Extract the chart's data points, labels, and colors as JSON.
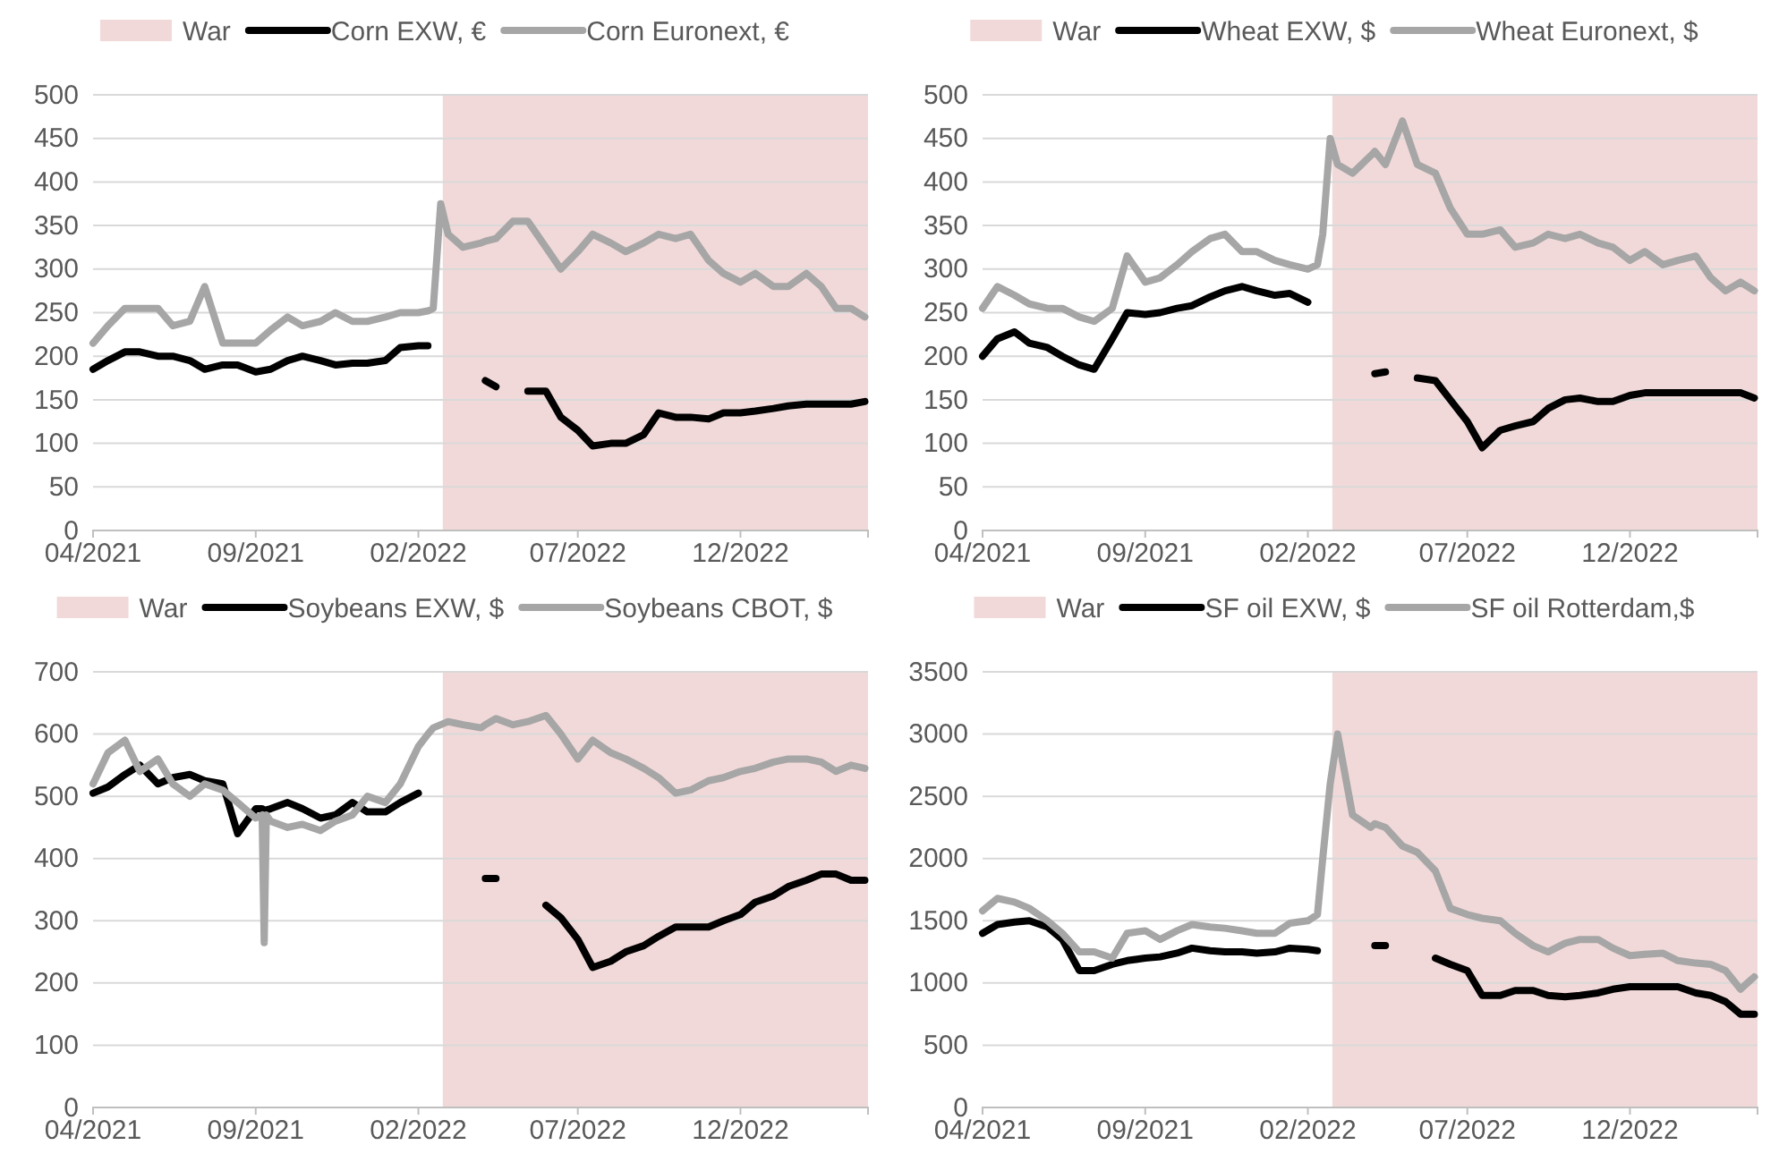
{
  "chart_data": [
    {
      "type": "line",
      "x": [
        "2021-04-01",
        "2021-04-15",
        "2021-05-01",
        "2021-05-15",
        "2021-06-01",
        "2021-06-15",
        "2021-07-01",
        "2021-07-15",
        "2021-08-01",
        "2021-08-15",
        "2021-09-01",
        "2021-09-15",
        "2021-10-01",
        "2021-10-15",
        "2021-11-01",
        "2021-11-15",
        "2021-12-01",
        "2021-12-15",
        "2022-01-01",
        "2022-01-15",
        "2022-02-01",
        "2022-02-10",
        "2022-02-15",
        "2022-02-22",
        "2022-03-01",
        "2022-03-15",
        "2022-04-01",
        "2022-04-05",
        "2022-04-15",
        "2022-05-01",
        "2022-05-15",
        "2022-06-01",
        "2022-06-15",
        "2022-07-01",
        "2022-07-15",
        "2022-08-01",
        "2022-08-15",
        "2022-09-01",
        "2022-09-15",
        "2022-10-01",
        "2022-10-15",
        "2022-11-01",
        "2022-11-15",
        "2022-12-01",
        "2022-12-15",
        "2023-01-01",
        "2023-01-15",
        "2023-02-01",
        "2023-02-15",
        "2023-03-01",
        "2023-03-15",
        "2023-03-28"
      ],
      "series": [
        {
          "name": "Corn EXW, €",
          "color": "#000000",
          "values": [
            185,
            195,
            205,
            205,
            200,
            200,
            195,
            185,
            190,
            190,
            182,
            185,
            195,
            200,
            195,
            190,
            192,
            192,
            195,
            210,
            212,
            212,
            null,
            null,
            null,
            null,
            null,
            172,
            165,
            null,
            160,
            160,
            130,
            115,
            97,
            100,
            100,
            110,
            135,
            130,
            130,
            128,
            135,
            135,
            137,
            140,
            143,
            145,
            145,
            145,
            145,
            148
          ]
        },
        {
          "name": "Corn Euronext, €",
          "color": "#a6a6a6",
          "values": [
            215,
            235,
            255,
            255,
            255,
            235,
            240,
            280,
            215,
            215,
            215,
            230,
            245,
            235,
            240,
            250,
            240,
            240,
            245,
            250,
            250,
            252,
            255,
            375,
            340,
            325,
            330,
            332,
            335,
            355,
            355,
            325,
            300,
            320,
            340,
            330,
            320,
            330,
            340,
            335,
            340,
            310,
            295,
            285,
            295,
            280,
            280,
            295,
            280,
            255,
            255,
            245
          ]
        }
      ],
      "xlim": [
        "2021-04-01",
        "2023-03-31"
      ],
      "xticks": [
        {
          "value": "2021-04",
          "label": "04/2021"
        },
        {
          "value": "2021-09",
          "label": "09/2021"
        },
        {
          "value": "2022-02",
          "label": "02/2022"
        },
        {
          "value": "2022-07",
          "label": "07/2022"
        },
        {
          "value": "2022-12",
          "label": "12/2022"
        }
      ],
      "ylim": [
        0,
        500
      ],
      "yticks": [
        0,
        50,
        100,
        150,
        200,
        250,
        300,
        350,
        400,
        450,
        500
      ],
      "grid": "y",
      "legend": "top",
      "bands": [
        {
          "axis": "x",
          "from": "2022-02-24",
          "to": "2023-03-31",
          "label": "War",
          "color": "#f2d9d9"
        }
      ]
    },
    {
      "type": "line",
      "x": [
        "2021-04-01",
        "2021-04-15",
        "2021-05-01",
        "2021-05-15",
        "2021-06-01",
        "2021-06-15",
        "2021-07-01",
        "2021-07-15",
        "2021-08-01",
        "2021-08-15",
        "2021-09-01",
        "2021-09-15",
        "2021-10-01",
        "2021-10-15",
        "2021-11-01",
        "2021-11-15",
        "2021-12-01",
        "2021-12-15",
        "2022-01-01",
        "2022-01-15",
        "2022-02-01",
        "2022-02-10",
        "2022-02-15",
        "2022-02-22",
        "2022-03-01",
        "2022-03-15",
        "2022-04-01",
        "2022-04-05",
        "2022-04-15",
        "2022-05-01",
        "2022-05-15",
        "2022-06-01",
        "2022-06-15",
        "2022-07-01",
        "2022-07-15",
        "2022-08-01",
        "2022-08-15",
        "2022-09-01",
        "2022-09-15",
        "2022-10-01",
        "2022-10-15",
        "2022-11-01",
        "2022-11-15",
        "2022-12-01",
        "2022-12-15",
        "2023-01-01",
        "2023-01-15",
        "2023-02-01",
        "2023-02-15",
        "2023-03-01",
        "2023-03-15",
        "2023-03-28"
      ],
      "series": [
        {
          "name": "Wheat EXW, $",
          "color": "#000000",
          "values": [
            200,
            220,
            228,
            215,
            210,
            200,
            190,
            185,
            220,
            250,
            248,
            250,
            255,
            258,
            268,
            275,
            280,
            275,
            270,
            272,
            262,
            null,
            null,
            null,
            null,
            null,
            null,
            180,
            182,
            null,
            175,
            172,
            150,
            125,
            95,
            115,
            120,
            125,
            140,
            150,
            152,
            148,
            148,
            155,
            158,
            158,
            158,
            158,
            158,
            158,
            158,
            152
          ]
        },
        {
          "name": "Wheat Euronext, $",
          "color": "#a6a6a6",
          "values": [
            255,
            280,
            270,
            260,
            255,
            255,
            245,
            240,
            255,
            315,
            285,
            290,
            305,
            320,
            335,
            340,
            320,
            320,
            310,
            305,
            300,
            305,
            340,
            450,
            420,
            410,
            430,
            435,
            420,
            470,
            420,
            410,
            370,
            340,
            340,
            345,
            325,
            330,
            340,
            335,
            340,
            330,
            325,
            310,
            320,
            305,
            310,
            315,
            290,
            275,
            285,
            275
          ]
        }
      ],
      "xlim": [
        "2021-04-01",
        "2023-03-31"
      ],
      "xticks": [
        {
          "value": "2021-04",
          "label": "04/2021"
        },
        {
          "value": "2021-09",
          "label": "09/2021"
        },
        {
          "value": "2022-02",
          "label": "02/2022"
        },
        {
          "value": "2022-07",
          "label": "07/2022"
        },
        {
          "value": "2022-12",
          "label": "12/2022"
        }
      ],
      "ylim": [
        0,
        500
      ],
      "yticks": [
        0,
        50,
        100,
        150,
        200,
        250,
        300,
        350,
        400,
        450,
        500
      ],
      "grid": "y",
      "legend": "top",
      "bands": [
        {
          "axis": "x",
          "from": "2022-02-24",
          "to": "2023-03-31",
          "label": "War",
          "color": "#f2d9d9"
        }
      ]
    },
    {
      "type": "line",
      "x": [
        "2021-04-01",
        "2021-04-15",
        "2021-05-01",
        "2021-05-15",
        "2021-06-01",
        "2021-06-15",
        "2021-07-01",
        "2021-07-15",
        "2021-08-01",
        "2021-08-15",
        "2021-09-01",
        "2021-09-07",
        "2021-09-09",
        "2021-09-11",
        "2021-09-15",
        "2021-10-01",
        "2021-10-15",
        "2021-11-01",
        "2021-11-15",
        "2021-12-01",
        "2021-12-15",
        "2022-01-01",
        "2022-01-15",
        "2022-02-01",
        "2022-02-10",
        "2022-02-15",
        "2022-02-22",
        "2022-03-01",
        "2022-03-15",
        "2022-04-01",
        "2022-04-05",
        "2022-04-15",
        "2022-05-01",
        "2022-05-15",
        "2022-06-01",
        "2022-06-15",
        "2022-07-01",
        "2022-07-15",
        "2022-08-01",
        "2022-08-15",
        "2022-09-01",
        "2022-09-15",
        "2022-10-01",
        "2022-10-15",
        "2022-11-01",
        "2022-11-15",
        "2022-12-01",
        "2022-12-15",
        "2023-01-01",
        "2023-01-15",
        "2023-02-01",
        "2023-02-15",
        "2023-03-01",
        "2023-03-15",
        "2023-03-28"
      ],
      "series": [
        {
          "name": "Soybeans EXW, $",
          "color": "#000000",
          "values": [
            505,
            515,
            535,
            550,
            520,
            530,
            535,
            525,
            520,
            440,
            480,
            480,
            478,
            478,
            480,
            490,
            480,
            465,
            470,
            490,
            475,
            475,
            490,
            505,
            null,
            null,
            null,
            null,
            null,
            null,
            368,
            368,
            null,
            null,
            325,
            305,
            270,
            225,
            235,
            250,
            260,
            275,
            290,
            290,
            290,
            300,
            310,
            330,
            340,
            355,
            365,
            375,
            375,
            365,
            365
          ]
        },
        {
          "name": "Soybeans CBOT, $",
          "color": "#a6a6a6",
          "values": [
            520,
            570,
            590,
            540,
            560,
            520,
            500,
            520,
            510,
            490,
            465,
            470,
            265,
            470,
            460,
            450,
            455,
            445,
            460,
            470,
            500,
            490,
            520,
            580,
            600,
            610,
            615,
            620,
            615,
            610,
            615,
            625,
            615,
            620,
            630,
            600,
            560,
            590,
            570,
            560,
            545,
            530,
            505,
            510,
            525,
            530,
            540,
            545,
            555,
            560,
            560,
            555,
            540,
            550,
            545
          ]
        }
      ],
      "xlim": [
        "2021-04-01",
        "2023-03-31"
      ],
      "xticks": [
        {
          "value": "2021-04",
          "label": "04/2021"
        },
        {
          "value": "2021-09",
          "label": "09/2021"
        },
        {
          "value": "2022-02",
          "label": "02/2022"
        },
        {
          "value": "2022-07",
          "label": "07/2022"
        },
        {
          "value": "2022-12",
          "label": "12/2022"
        }
      ],
      "ylim": [
        0,
        700
      ],
      "yticks": [
        0,
        100,
        200,
        300,
        400,
        500,
        600,
        700
      ],
      "grid": "y",
      "legend": "top",
      "bands": [
        {
          "axis": "x",
          "from": "2022-02-24",
          "to": "2023-03-31",
          "label": "War",
          "color": "#f2d9d9"
        }
      ]
    },
    {
      "type": "line",
      "x": [
        "2021-04-01",
        "2021-04-15",
        "2021-05-01",
        "2021-05-15",
        "2021-06-01",
        "2021-06-15",
        "2021-07-01",
        "2021-07-15",
        "2021-08-01",
        "2021-08-15",
        "2021-09-01",
        "2021-09-15",
        "2021-10-01",
        "2021-10-15",
        "2021-11-01",
        "2021-11-15",
        "2021-12-01",
        "2021-12-15",
        "2022-01-01",
        "2022-01-15",
        "2022-02-01",
        "2022-02-10",
        "2022-02-15",
        "2022-02-22",
        "2022-03-01",
        "2022-03-15",
        "2022-04-01",
        "2022-04-05",
        "2022-04-15",
        "2022-05-01",
        "2022-05-15",
        "2022-06-01",
        "2022-06-15",
        "2022-07-01",
        "2022-07-15",
        "2022-08-01",
        "2022-08-15",
        "2022-09-01",
        "2022-09-15",
        "2022-10-01",
        "2022-10-15",
        "2022-11-01",
        "2022-11-15",
        "2022-12-01",
        "2022-12-15",
        "2023-01-01",
        "2023-01-15",
        "2023-02-01",
        "2023-02-15",
        "2023-03-01",
        "2023-03-15",
        "2023-03-28"
      ],
      "series": [
        {
          "name": "SF oil EXW, $",
          "color": "#000000",
          "values": [
            1400,
            1470,
            1490,
            1500,
            1450,
            1350,
            1100,
            1100,
            1150,
            1180,
            1200,
            1210,
            1240,
            1280,
            1260,
            1250,
            1250,
            1240,
            1250,
            1280,
            1270,
            1260,
            null,
            null,
            null,
            null,
            null,
            1300,
            1300,
            null,
            null,
            1200,
            1150,
            1100,
            900,
            900,
            940,
            940,
            900,
            890,
            900,
            920,
            950,
            970,
            970,
            970,
            970,
            920,
            900,
            850,
            750,
            750
          ]
        },
        {
          "name": "SF oil Rotterdam,$",
          "color": "#a6a6a6",
          "values": [
            1580,
            1680,
            1650,
            1600,
            1500,
            1400,
            1250,
            1250,
            1200,
            1400,
            1420,
            1350,
            1420,
            1470,
            1450,
            1440,
            1420,
            1400,
            1400,
            1480,
            1500,
            1550,
            2000,
            2600,
            3000,
            2350,
            2250,
            2280,
            2250,
            2100,
            2050,
            1900,
            1600,
            1550,
            1520,
            1500,
            1400,
            1300,
            1250,
            1320,
            1350,
            1350,
            1280,
            1220,
            1230,
            1240,
            1180,
            1160,
            1150,
            1100,
            950,
            1050
          ]
        }
      ],
      "xlim": [
        "2021-04-01",
        "2023-03-31"
      ],
      "xticks": [
        {
          "value": "2021-04",
          "label": "04/2021"
        },
        {
          "value": "2021-09",
          "label": "09/2021"
        },
        {
          "value": "2022-02",
          "label": "02/2022"
        },
        {
          "value": "2022-07",
          "label": "07/2022"
        },
        {
          "value": "2022-12",
          "label": "12/2022"
        }
      ],
      "ylim": [
        0,
        3500
      ],
      "yticks": [
        0,
        500,
        1000,
        1500,
        2000,
        2500,
        3000,
        3500
      ],
      "grid": "y",
      "legend": "top",
      "bands": [
        {
          "axis": "x",
          "from": "2022-02-24",
          "to": "2023-03-31",
          "label": "War",
          "color": "#f2d9d9"
        }
      ]
    }
  ]
}
